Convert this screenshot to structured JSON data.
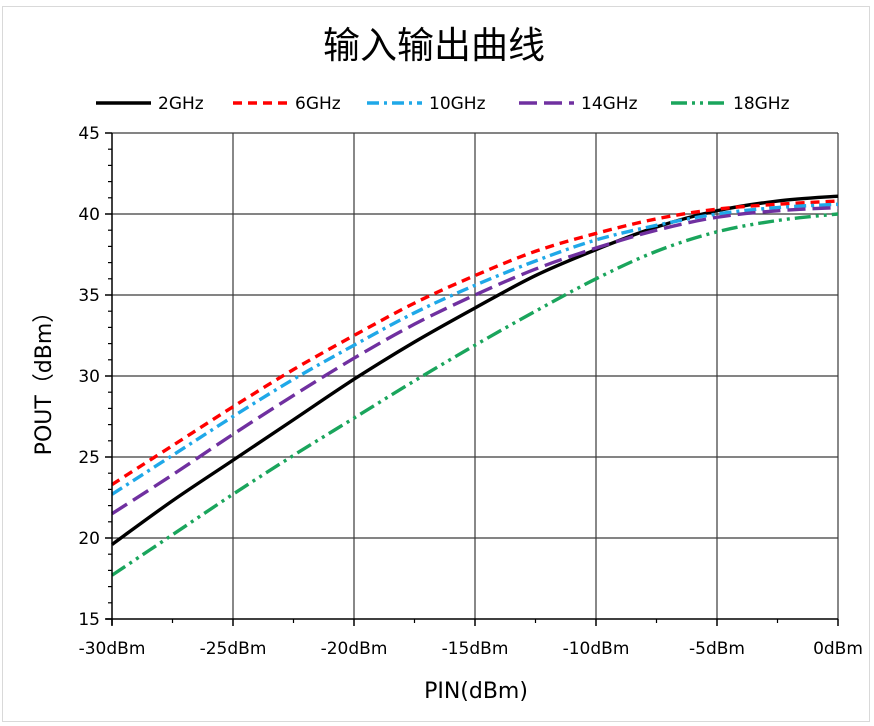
{
  "chart_data": {
    "type": "line",
    "title": "输入输出曲线",
    "xlabel": "PIN(dBm)",
    "ylabel": "POUT（dBm）",
    "xlim": [
      -30,
      0
    ],
    "ylim": [
      15,
      45
    ],
    "x_ticks": [
      -30,
      -25,
      -20,
      -15,
      -10,
      -5,
      0
    ],
    "x_tick_labels": [
      "-30dBm",
      "-25dBm",
      "-20dBm",
      "-15dBm",
      "-10dBm",
      "-5dBm",
      "0dBm"
    ],
    "y_ticks": [
      15,
      20,
      25,
      30,
      35,
      40,
      45
    ],
    "y_tick_labels": [
      "15",
      "20",
      "25",
      "30",
      "35",
      "40",
      "45"
    ],
    "grid": true,
    "legend": "top",
    "series": [
      {
        "name": "2GHz",
        "color": "#000000",
        "dash": "solid",
        "x": [
          -30,
          -27.5,
          -25,
          -22.5,
          -20,
          -17.5,
          -15,
          -12.5,
          -10,
          -7.5,
          -5,
          -2.5,
          0
        ],
        "y": [
          19.6,
          22.3,
          24.8,
          27.3,
          29.8,
          32.1,
          34.2,
          36.2,
          37.8,
          39.2,
          40.2,
          40.8,
          41.1
        ]
      },
      {
        "name": "6GHz",
        "color": "#ff0000",
        "dash": "short-dash",
        "x": [
          -30,
          -27.5,
          -25,
          -22.5,
          -20,
          -17.5,
          -15,
          -12.5,
          -10,
          -7.5,
          -5,
          -2.5,
          0
        ],
        "y": [
          23.3,
          25.7,
          28.1,
          30.4,
          32.5,
          34.5,
          36.2,
          37.7,
          38.8,
          39.7,
          40.3,
          40.6,
          40.8
        ]
      },
      {
        "name": "10GHz",
        "color": "#1fa8e8",
        "dash": "dash-dot",
        "x": [
          -30,
          -27.5,
          -25,
          -22.5,
          -20,
          -17.5,
          -15,
          -12.5,
          -10,
          -7.5,
          -5,
          -2.5,
          0
        ],
        "y": [
          22.7,
          25.1,
          27.5,
          29.8,
          31.9,
          33.9,
          35.6,
          37.1,
          38.4,
          39.3,
          40.0,
          40.4,
          40.6
        ]
      },
      {
        "name": "14GHz",
        "color": "#7030a0",
        "dash": "long-dash",
        "x": [
          -30,
          -27.5,
          -25,
          -22.5,
          -20,
          -17.5,
          -15,
          -12.5,
          -10,
          -7.5,
          -5,
          -2.5,
          0
        ],
        "y": [
          21.5,
          23.9,
          26.4,
          28.8,
          31.1,
          33.2,
          35.0,
          36.6,
          37.9,
          39.0,
          39.8,
          40.2,
          40.4
        ]
      },
      {
        "name": "18GHz",
        "color": "#1aa55c",
        "dash": "dash-dot-dot",
        "x": [
          -30,
          -27.5,
          -25,
          -22.5,
          -20,
          -17.5,
          -15,
          -12.5,
          -10,
          -7.5,
          -5,
          -2.5,
          0
        ],
        "y": [
          17.7,
          20.2,
          22.7,
          25.1,
          27.4,
          29.7,
          31.9,
          34.0,
          36.0,
          37.7,
          38.9,
          39.6,
          40.0
        ]
      }
    ]
  }
}
